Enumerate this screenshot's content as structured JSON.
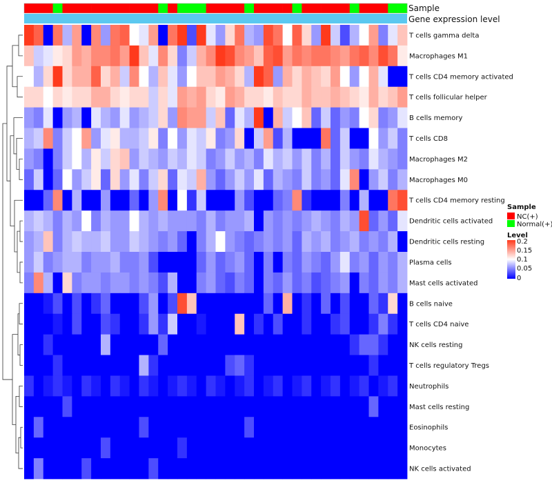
{
  "chart_data": {
    "type": "heatmap",
    "title": "",
    "annotation_labels": [
      "Sample",
      "Gene expression level"
    ],
    "annotation_colors": {
      "NC(+)": "#ff0000",
      "Normal(+)": "#00ff00",
      "Gene expression level": "#5bc8f0"
    },
    "sample_groups": [
      "NC(+)",
      "NC(+)",
      "NC(+)",
      "Normal(+)",
      "NC(+)",
      "NC(+)",
      "NC(+)",
      "NC(+)",
      "NC(+)",
      "NC(+)",
      "NC(+)",
      "NC(+)",
      "NC(+)",
      "NC(+)",
      "Normal(+)",
      "NC(+)",
      "Normal(+)",
      "Normal(+)",
      "Normal(+)",
      "NC(+)",
      "NC(+)",
      "NC(+)",
      "NC(+)",
      "Normal(+)",
      "NC(+)",
      "NC(+)",
      "NC(+)",
      "NC(+)",
      "Normal(+)",
      "NC(+)",
      "NC(+)",
      "NC(+)",
      "NC(+)",
      "NC(+)",
      "Normal(+)",
      "NC(+)",
      "NC(+)",
      "NC(+)",
      "Normal(+)",
      "Normal(+)"
    ],
    "rows": [
      "T cells gamma delta",
      "Macrophages M1",
      "T cells CD4 memory activated",
      "T cells follicular helper",
      "B cells memory",
      "T cells CD8",
      "Macrophages M2",
      "Macrophages M0",
      "T cells CD4 memory resting",
      "Dendritic cells activated",
      "Dendritic cells resting",
      "Plasma cells",
      "Mast cells activated",
      "B cells naive",
      "T cells CD4 naive",
      "NK cells resting",
      "T cells regulatory  Tregs",
      "Neutrophils",
      "Mast cells resting",
      "Eosinophils",
      "Monocytes",
      "NK cells activated"
    ],
    "values": [
      [
        0.2,
        0.18,
        0.0,
        0.17,
        0.07,
        0.15,
        0.0,
        0.16,
        0.06,
        0.17,
        0.18,
        0.1,
        0.09,
        0.15,
        0.0,
        0.17,
        0.2,
        0.03,
        0.2,
        0.09,
        0.06,
        0.12,
        0.17,
        0.07,
        0.06,
        0.19,
        0.17,
        0.1,
        0.18,
        0.12,
        0.06,
        0.2,
        0.08,
        0.03,
        0.07,
        0.1,
        0.15,
        0.05,
        0.09,
        0.13
      ],
      [
        0.13,
        0.08,
        0.09,
        0.11,
        0.12,
        0.15,
        0.14,
        0.16,
        0.16,
        0.17,
        0.15,
        0.2,
        0.13,
        0.09,
        0.16,
        0.12,
        0.05,
        0.08,
        0.14,
        0.16,
        0.2,
        0.19,
        0.16,
        0.15,
        0.13,
        0.18,
        0.19,
        0.15,
        0.17,
        0.16,
        0.17,
        0.17,
        0.16,
        0.15,
        0.17,
        0.18,
        0.16,
        0.19,
        0.17,
        0.11
      ],
      [
        0.1,
        0.07,
        0.12,
        0.2,
        0.12,
        0.14,
        0.14,
        0.18,
        0.12,
        0.14,
        0.08,
        0.16,
        0.1,
        0.07,
        0.13,
        0.09,
        0.06,
        0.1,
        0.13,
        0.13,
        0.15,
        0.14,
        0.12,
        0.07,
        0.2,
        0.18,
        0.06,
        0.14,
        0.12,
        0.14,
        0.13,
        0.12,
        0.15,
        0.1,
        0.06,
        0.1,
        0.14,
        0.09,
        0.0,
        0.0
      ],
      [
        0.12,
        0.12,
        0.1,
        0.12,
        0.11,
        0.12,
        0.12,
        0.14,
        0.14,
        0.12,
        0.11,
        0.12,
        0.12,
        0.08,
        0.12,
        0.09,
        0.15,
        0.14,
        0.15,
        0.12,
        0.11,
        0.15,
        0.14,
        0.12,
        0.12,
        0.11,
        0.13,
        0.12,
        0.12,
        0.14,
        0.13,
        0.13,
        0.14,
        0.13,
        0.12,
        0.11,
        0.14,
        0.12,
        0.13,
        0.15
      ],
      [
        0.06,
        0.05,
        0.09,
        0.0,
        0.06,
        0.07,
        0.0,
        0.09,
        0.07,
        0.06,
        0.09,
        0.06,
        0.07,
        0.08,
        0.12,
        0.06,
        0.16,
        0.15,
        0.15,
        0.08,
        0.13,
        0.04,
        0.09,
        0.07,
        0.2,
        0.0,
        0.14,
        0.08,
        0.1,
        0.13,
        0.04,
        0.08,
        0.04,
        0.06,
        0.05,
        0.1,
        0.12,
        0.05,
        0.06,
        0.09
      ],
      [
        0.07,
        0.08,
        0.16,
        0.05,
        0.08,
        0.1,
        0.15,
        0.06,
        0.09,
        0.11,
        0.07,
        0.07,
        0.08,
        0.11,
        0.05,
        0.1,
        0.06,
        0.09,
        0.08,
        0.11,
        0.05,
        0.06,
        0.12,
        0.0,
        0.08,
        0.15,
        0.03,
        0.07,
        0.0,
        0.0,
        0.0,
        0.17,
        0.04,
        0.08,
        0.0,
        0.0,
        0.1,
        0.06,
        0.08,
        0.05
      ],
      [
        0.06,
        0.05,
        0.0,
        0.05,
        0.08,
        0.1,
        0.07,
        0.11,
        0.08,
        0.12,
        0.13,
        0.06,
        0.08,
        0.07,
        0.06,
        0.08,
        0.07,
        0.09,
        0.08,
        0.05,
        0.06,
        0.08,
        0.06,
        0.07,
        0.05,
        0.09,
        0.07,
        0.08,
        0.06,
        0.08,
        0.05,
        0.07,
        0.04,
        0.08,
        0.06,
        0.05,
        0.09,
        0.07,
        0.06,
        0.05
      ],
      [
        0.04,
        0.08,
        0.0,
        0.04,
        0.1,
        0.06,
        0.08,
        0.11,
        0.04,
        0.12,
        0.06,
        0.09,
        0.05,
        0.08,
        0.12,
        0.04,
        0.09,
        0.08,
        0.14,
        0.06,
        0.04,
        0.06,
        0.08,
        0.06,
        0.09,
        0.04,
        0.07,
        0.06,
        0.05,
        0.08,
        0.05,
        0.06,
        0.04,
        0.09,
        0.16,
        0.0,
        0.06,
        0.08,
        0.05,
        0.07
      ],
      [
        0.0,
        0.0,
        0.04,
        0.16,
        0.0,
        0.07,
        0.0,
        0.0,
        0.06,
        0.0,
        0.0,
        0.04,
        0.0,
        0.06,
        0.16,
        0.0,
        0.1,
        0.02,
        0.08,
        0.0,
        0.0,
        0.0,
        0.06,
        0.03,
        0.0,
        0.0,
        0.04,
        0.05,
        0.16,
        0.02,
        0.0,
        0.0,
        0.0,
        0.05,
        0.0,
        0.07,
        0.0,
        0.0,
        0.17,
        0.19
      ],
      [
        0.07,
        0.08,
        0.07,
        0.05,
        0.07,
        0.06,
        0.1,
        0.05,
        0.07,
        0.06,
        0.06,
        0.1,
        0.07,
        0.06,
        0.07,
        0.06,
        0.06,
        0.06,
        0.05,
        0.07,
        0.05,
        0.06,
        0.06,
        0.07,
        0.0,
        0.06,
        0.05,
        0.06,
        0.05,
        0.06,
        0.07,
        0.06,
        0.05,
        0.07,
        0.06,
        0.19,
        0.04,
        0.06,
        0.04,
        0.09
      ],
      [
        0.06,
        0.07,
        0.13,
        0.05,
        0.07,
        0.08,
        0.07,
        0.07,
        0.08,
        0.06,
        0.06,
        0.08,
        0.07,
        0.06,
        0.05,
        0.06,
        0.04,
        0.0,
        0.05,
        0.07,
        0.1,
        0.06,
        0.05,
        0.04,
        0.05,
        0.06,
        0.05,
        0.06,
        0.04,
        0.07,
        0.06,
        0.07,
        0.05,
        0.06,
        0.07,
        0.05,
        0.06,
        0.05,
        0.07,
        0.0
      ],
      [
        0.06,
        0.08,
        0.05,
        0.06,
        0.07,
        0.07,
        0.05,
        0.06,
        0.06,
        0.07,
        0.05,
        0.05,
        0.06,
        0.03,
        0.0,
        0.0,
        0.0,
        0.0,
        0.04,
        0.06,
        0.04,
        0.05,
        0.06,
        0.04,
        0.0,
        0.05,
        0.0,
        0.05,
        0.04,
        0.06,
        0.05,
        0.04,
        0.06,
        0.09,
        0.05,
        0.06,
        0.04,
        0.06,
        0.05,
        0.07
      ],
      [
        0.05,
        0.16,
        0.07,
        0.0,
        0.12,
        0.05,
        0.06,
        0.06,
        0.05,
        0.06,
        0.06,
        0.05,
        0.06,
        0.05,
        0.03,
        0.07,
        0.0,
        0.0,
        0.05,
        0.06,
        0.04,
        0.03,
        0.05,
        0.04,
        0.0,
        0.05,
        0.04,
        0.06,
        0.04,
        0.05,
        0.03,
        0.04,
        0.05,
        0.06,
        0.0,
        0.05,
        0.04,
        0.06,
        0.05,
        0.07
      ],
      [
        0.0,
        0.0,
        0.01,
        0.03,
        0.0,
        0.03,
        0.0,
        0.02,
        0.04,
        0.0,
        0.0,
        0.0,
        0.03,
        0.06,
        0.0,
        0.03,
        0.19,
        0.13,
        0.0,
        0.0,
        0.0,
        0.0,
        0.0,
        0.0,
        0.0,
        0.04,
        0.0,
        0.14,
        0.0,
        0.02,
        0.0,
        0.04,
        0.0,
        0.03,
        0.0,
        0.0,
        0.04,
        0.02,
        0.12,
        0.0
      ],
      [
        0.0,
        0.0,
        0.0,
        0.01,
        0.0,
        0.03,
        0.0,
        0.0,
        0.03,
        0.02,
        0.0,
        0.0,
        0.02,
        0.06,
        0.02,
        0.08,
        0.0,
        0.0,
        0.01,
        0.0,
        0.0,
        0.0,
        0.13,
        0.0,
        0.02,
        0.0,
        0.03,
        0.0,
        0.0,
        0.02,
        0.0,
        0.0,
        0.02,
        0.03,
        0.0,
        0.0,
        0.02,
        0.05,
        0.02,
        0.0
      ],
      [
        0.0,
        0.0,
        0.02,
        0.0,
        0.0,
        0.0,
        0.0,
        0.0,
        0.07,
        0.0,
        0.0,
        0.0,
        0.0,
        0.0,
        0.04,
        0.0,
        0.0,
        0.0,
        0.0,
        0.0,
        0.0,
        0.0,
        0.0,
        0.0,
        0.0,
        0.0,
        0.0,
        0.0,
        0.0,
        0.0,
        0.0,
        0.0,
        0.0,
        0.0,
        0.02,
        0.04,
        0.04,
        0.02,
        0.0,
        0.0
      ],
      [
        0.0,
        0.0,
        0.0,
        0.02,
        0.0,
        0.0,
        0.0,
        0.0,
        0.0,
        0.0,
        0.0,
        0.0,
        0.07,
        0.02,
        0.0,
        0.0,
        0.0,
        0.0,
        0.0,
        0.0,
        0.0,
        0.03,
        0.04,
        0.02,
        0.0,
        0.0,
        0.0,
        0.0,
        0.0,
        0.0,
        0.0,
        0.0,
        0.0,
        0.0,
        0.0,
        0.0,
        0.02,
        0.0,
        0.0,
        0.0
      ],
      [
        0.02,
        0.0,
        0.01,
        0.02,
        0.01,
        0.0,
        0.02,
        0.01,
        0.0,
        0.02,
        0.01,
        0.0,
        0.02,
        0.01,
        0.0,
        0.01,
        0.02,
        0.01,
        0.0,
        0.02,
        0.01,
        0.0,
        0.01,
        0.02,
        0.0,
        0.01,
        0.02,
        0.0,
        0.01,
        0.02,
        0.0,
        0.01,
        0.02,
        0.0,
        0.01,
        0.02,
        0.0,
        0.01,
        0.02,
        0.0
      ],
      [
        0.0,
        0.0,
        0.0,
        0.0,
        0.03,
        0.0,
        0.0,
        0.0,
        0.0,
        0.0,
        0.0,
        0.0,
        0.0,
        0.0,
        0.0,
        0.0,
        0.0,
        0.0,
        0.0,
        0.0,
        0.0,
        0.0,
        0.0,
        0.0,
        0.0,
        0.0,
        0.0,
        0.0,
        0.0,
        0.0,
        0.0,
        0.0,
        0.0,
        0.0,
        0.0,
        0.0,
        0.04,
        0.0,
        0.0,
        0.0
      ],
      [
        0.0,
        0.04,
        0.0,
        0.0,
        0.0,
        0.0,
        0.0,
        0.0,
        0.0,
        0.0,
        0.0,
        0.0,
        0.03,
        0.0,
        0.0,
        0.0,
        0.0,
        0.0,
        0.0,
        0.0,
        0.0,
        0.0,
        0.0,
        0.03,
        0.0,
        0.0,
        0.0,
        0.0,
        0.0,
        0.0,
        0.0,
        0.0,
        0.0,
        0.0,
        0.0,
        0.0,
        0.0,
        0.0,
        0.0,
        0.0
      ],
      [
        0.0,
        0.0,
        0.0,
        0.0,
        0.0,
        0.0,
        0.0,
        0.0,
        0.03,
        0.0,
        0.0,
        0.0,
        0.0,
        0.0,
        0.0,
        0.0,
        0.02,
        0.0,
        0.0,
        0.0,
        0.0,
        0.0,
        0.0,
        0.0,
        0.0,
        0.0,
        0.0,
        0.0,
        0.0,
        0.0,
        0.0,
        0.0,
        0.0,
        0.0,
        0.0,
        0.0,
        0.0,
        0.0,
        0.0,
        0.0
      ],
      [
        0.0,
        0.05,
        0.0,
        0.0,
        0.0,
        0.0,
        0.03,
        0.0,
        0.0,
        0.0,
        0.0,
        0.0,
        0.0,
        0.03,
        0.0,
        0.0,
        0.0,
        0.0,
        0.0,
        0.0,
        0.0,
        0.0,
        0.0,
        0.0,
        0.0,
        0.0,
        0.0,
        0.0,
        0.0,
        0.0,
        0.0,
        0.0,
        0.0,
        0.0,
        0.0,
        0.0,
        0.0,
        0.0,
        0.0,
        0.0
      ]
    ],
    "colorscale": {
      "min": 0,
      "mid": 0.1,
      "max": 0.2,
      "low_color": "#0000ff",
      "mid_color": "#ffffff",
      "high_color": "#ff3a1c"
    },
    "legend": {
      "sample_title": "Sample",
      "sample_entries": [
        "NC(+)",
        "Normal(+)"
      ],
      "level_title": "Level",
      "level_ticks": [
        "0.2",
        "0.15",
        "0.1",
        "0.05",
        "0"
      ]
    }
  }
}
